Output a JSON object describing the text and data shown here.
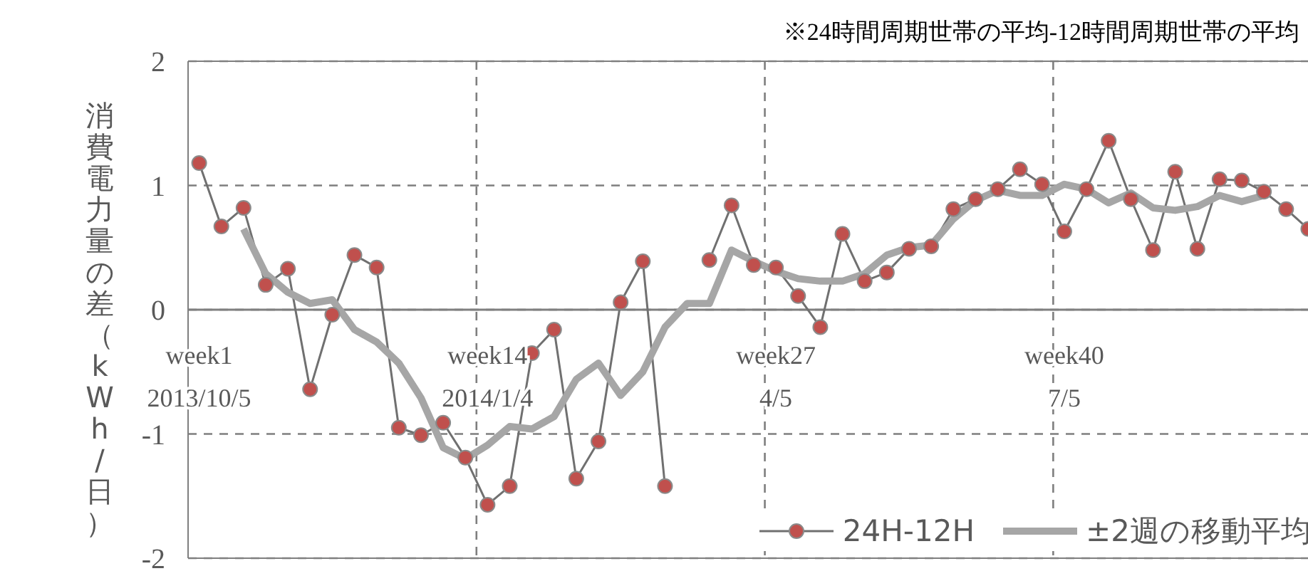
{
  "chart_data": {
    "type": "line",
    "ylabel": "消費電力量の差（kWh/日）",
    "annotations": [
      "※24時間周期世帯の平均-12時間周期世帯の平均"
    ],
    "categories": [
      "week1\n2013/10/5",
      null,
      null,
      null,
      null,
      null,
      null,
      null,
      null,
      null,
      null,
      null,
      null,
      "week14\n2014/1/4",
      null,
      null,
      null,
      null,
      null,
      null,
      null,
      null,
      null,
      null,
      null,
      null,
      "week27\n4/5",
      null,
      null,
      null,
      null,
      null,
      null,
      null,
      null,
      null,
      null,
      null,
      null,
      "week40\n7/5",
      null,
      null,
      null,
      null,
      null,
      null,
      null,
      null,
      null,
      null,
      null
    ],
    "ylim": [
      -2,
      2
    ],
    "yticks": [
      -2,
      -1,
      0,
      1,
      2
    ],
    "grid": true,
    "legend": "bottom right",
    "series": [
      {
        "name": "24H-12H",
        "color": "#c0504d",
        "marker": "circle",
        "values": [
          1.18,
          0.67,
          0.82,
          0.2,
          0.33,
          -0.64,
          -0.04,
          0.44,
          0.34,
          -0.95,
          -1.01,
          -0.91,
          -1.19,
          -1.57,
          -1.42,
          -0.35,
          -0.16,
          -1.36,
          -1.06,
          0.06,
          0.39,
          -1.42,
          null,
          0.4,
          0.84,
          0.36,
          0.34,
          0.11,
          -0.14,
          0.61,
          0.23,
          0.3,
          0.49,
          0.51,
          0.81,
          0.89,
          0.97,
          1.13,
          1.01,
          0.63,
          0.97,
          1.36,
          0.89,
          0.48,
          1.11,
          0.49,
          1.05,
          1.04,
          0.95,
          0.81,
          0.65
        ]
      },
      {
        "name": "±2週の移動平均",
        "color": "#a6a6a6",
        "marker": "none",
        "values": [
          null,
          null,
          0.65,
          0.29,
          0.14,
          0.05,
          0.08,
          -0.16,
          -0.26,
          -0.43,
          -0.71,
          -1.11,
          -1.2,
          -1.09,
          -0.94,
          -0.96,
          -0.86,
          -0.56,
          -0.43,
          -0.69,
          -0.5,
          -0.14,
          0.05,
          0.05,
          0.48,
          0.39,
          0.31,
          0.25,
          0.23,
          0.23,
          0.29,
          0.44,
          0.5,
          0.52,
          0.73,
          0.88,
          0.96,
          0.92,
          0.92,
          1.01,
          0.97,
          0.86,
          0.94,
          0.82,
          0.8,
          0.83,
          0.92,
          0.87,
          0.92,
          null,
          null
        ]
      }
    ]
  }
}
